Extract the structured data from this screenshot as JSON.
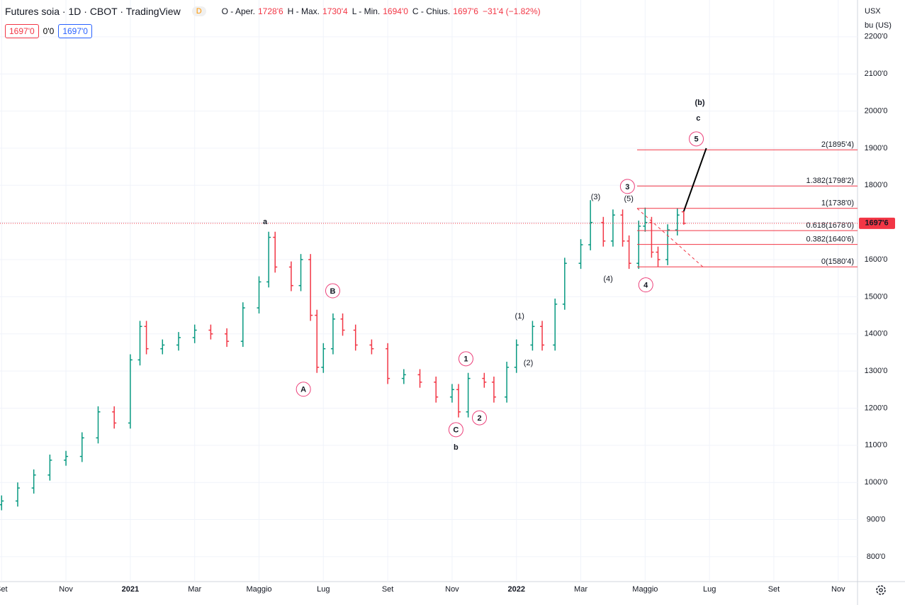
{
  "header": {
    "title": "Futures soia · 1D · CBOT · TradingView",
    "badge": "D",
    "ohlc": [
      {
        "label": "O - Aper.",
        "value": "1728'6"
      },
      {
        "label": "H - Max.",
        "value": "1730'4"
      },
      {
        "label": "L - Min.",
        "value": "1694'0"
      },
      {
        "label": "C - Chius.",
        "value": "1697'6"
      }
    ],
    "change": "−31'4 (−1.82%)",
    "price_boxes": [
      "1697'0",
      "0'0",
      "1697'0"
    ],
    "currency": "USX",
    "unit": "bu (US)"
  },
  "chart_data": {
    "type": "ohlc",
    "up_color": "#089981",
    "down_color": "#f23645",
    "x": [
      0,
      0.5,
      1,
      1.5,
      2,
      2.5,
      3,
      3.5,
      4,
      4.3,
      4.5,
      5,
      5.5,
      6,
      6.5,
      7,
      7.5,
      8,
      8.3,
      8.5,
      9,
      9.3,
      9.6,
      9.8,
      10,
      10.3,
      10.6,
      11,
      11.5,
      12,
      12.5,
      13,
      13.5,
      14,
      14.2,
      14.5,
      15,
      15.3,
      15.7,
      16,
      16.5,
      16.8,
      17.2,
      17.5,
      18,
      18.3,
      18.7,
      19,
      19.3,
      19.5,
      19.8,
      20,
      20.2,
      20.4,
      20.7,
      21,
      21.2
    ],
    "open": [
      940,
      950,
      985,
      1020,
      1060,
      1070,
      1120,
      1190,
      1160,
      1330,
      1420,
      1360,
      1370,
      1390,
      1410,
      1400,
      1380,
      1470,
      1540,
      1660,
      1580,
      1530,
      1600,
      1450,
      1310,
      1360,
      1440,
      1410,
      1370,
      1360,
      1280,
      1290,
      1270,
      1230,
      1250,
      1190,
      1280,
      1270,
      1230,
      1310,
      1370,
      1420,
      1370,
      1480,
      1590,
      1640,
      1700,
      1650,
      1720,
      1650,
      1590,
      1690,
      1700,
      1620,
      1600,
      1680,
      1728.75
    ],
    "high": [
      965,
      1000,
      1035,
      1075,
      1085,
      1135,
      1205,
      1205,
      1345,
      1435,
      1435,
      1385,
      1405,
      1425,
      1425,
      1415,
      1485,
      1555,
      1675,
      1675,
      1595,
      1615,
      1615,
      1465,
      1375,
      1455,
      1455,
      1425,
      1385,
      1375,
      1305,
      1305,
      1285,
      1265,
      1265,
      1295,
      1295,
      1285,
      1325,
      1385,
      1435,
      1435,
      1495,
      1605,
      1655,
      1760,
      1715,
      1735,
      1735,
      1665,
      1705,
      1740,
      1715,
      1635,
      1695,
      1738,
      1730.5
    ],
    "low": [
      925,
      935,
      970,
      1005,
      1045,
      1055,
      1105,
      1145,
      1145,
      1315,
      1345,
      1345,
      1355,
      1375,
      1385,
      1365,
      1365,
      1455,
      1525,
      1565,
      1515,
      1515,
      1435,
      1295,
      1295,
      1345,
      1395,
      1355,
      1345,
      1265,
      1265,
      1255,
      1215,
      1215,
      1175,
      1175,
      1255,
      1215,
      1215,
      1295,
      1355,
      1355,
      1355,
      1465,
      1575,
      1625,
      1635,
      1635,
      1635,
      1575,
      1575,
      1675,
      1605,
      1580.5,
      1585,
      1665,
      1694
    ],
    "close": [
      950,
      985,
      1020,
      1060,
      1070,
      1120,
      1190,
      1160,
      1330,
      1420,
      1360,
      1370,
      1390,
      1410,
      1400,
      1380,
      1470,
      1540,
      1660,
      1580,
      1530,
      1600,
      1450,
      1310,
      1360,
      1440,
      1410,
      1370,
      1360,
      1280,
      1290,
      1270,
      1230,
      1250,
      1190,
      1280,
      1270,
      1230,
      1310,
      1370,
      1420,
      1370,
      1480,
      1590,
      1640,
      1700,
      1650,
      1720,
      1650,
      1590,
      1690,
      1700,
      1620,
      1600,
      1680,
      1720,
      1697.75
    ],
    "last_price_label": "1697'6",
    "xlim": [
      -0.05,
      26.6
    ],
    "ylim": [
      733,
      2299
    ],
    "xticks": [
      {
        "value": 0,
        "label": "Set"
      },
      {
        "value": 2,
        "label": "Nov"
      },
      {
        "value": 4,
        "label": "2021"
      },
      {
        "value": 6,
        "label": "Mar"
      },
      {
        "value": 8,
        "label": "Maggio"
      },
      {
        "value": 10,
        "label": "Lug"
      },
      {
        "value": 12,
        "label": "Set"
      },
      {
        "value": 14,
        "label": "Nov"
      },
      {
        "value": 16,
        "label": "2022"
      },
      {
        "value": 18,
        "label": "Mar"
      },
      {
        "value": 20,
        "label": "Maggio"
      },
      {
        "value": 22,
        "label": "Lug"
      },
      {
        "value": 24,
        "label": "Set"
      },
      {
        "value": 26,
        "label": "Nov"
      }
    ],
    "yticks": [
      {
        "value": 800,
        "label": "800'0"
      },
      {
        "value": 900,
        "label": "900'0"
      },
      {
        "value": 1000,
        "label": "1000'0"
      },
      {
        "value": 1100,
        "label": "1100'0"
      },
      {
        "value": 1200,
        "label": "1200'0"
      },
      {
        "value": 1300,
        "label": "1300'0"
      },
      {
        "value": 1400,
        "label": "1400'0"
      },
      {
        "value": 1500,
        "label": "1500'0"
      },
      {
        "value": 1600,
        "label": "1600'0"
      },
      {
        "value": 1700,
        "label": "1700'0"
      },
      {
        "value": 1800,
        "label": "1800'0"
      },
      {
        "value": 1900,
        "label": "1900'0"
      },
      {
        "value": 2000,
        "label": "2000'0"
      },
      {
        "value": 2100,
        "label": "2100'0"
      },
      {
        "value": 2200,
        "label": "2200'0"
      }
    ],
    "grid": true,
    "fib_start_x": 19.75,
    "fib_color": "#f23645",
    "fib_levels": [
      {
        "value": 1895.5,
        "label": "2(1895'4)"
      },
      {
        "value": 1798.25,
        "label": "1.382(1798'2)"
      },
      {
        "value": 1738,
        "label": "1(1738'0)"
      },
      {
        "value": 1678,
        "label": "0.618(1678'0)"
      },
      {
        "value": 1640.75,
        "label": "0.382(1640'6)"
      },
      {
        "value": 1580.5,
        "label": "0(1580'4)"
      }
    ],
    "trendlines": [
      {
        "x": [
          21.2,
          21.9
        ],
        "y": [
          1730,
          1900
        ],
        "color": "#000000",
        "dash": false
      },
      {
        "x": [
          19.75,
          21.8
        ],
        "y": [
          1738,
          1580
        ],
        "color": "#f23645",
        "dash": true
      }
    ],
    "annotations": [
      {
        "text": "a",
        "x": 8.19,
        "y": 1703,
        "color": "#00695c",
        "style": "plain"
      },
      {
        "text": "b",
        "x": 14.12,
        "y": 1096,
        "color": "#00695c",
        "style": "plain"
      },
      {
        "text": "c",
        "x": 21.65,
        "y": 1982,
        "color": "#00695c",
        "style": "plain"
      },
      {
        "text": "(b)",
        "x": 21.7,
        "y": 2024,
        "color": "#e53935",
        "style": "bold"
      },
      {
        "text": "A",
        "x": 9.38,
        "y": 1251,
        "color": "#ec407a",
        "style": "circle"
      },
      {
        "text": "B",
        "x": 10.29,
        "y": 1516,
        "color": "#ec407a",
        "style": "circle"
      },
      {
        "text": "C",
        "x": 14.12,
        "y": 1142,
        "color": "#ec407a",
        "style": "circle"
      },
      {
        "text": "1",
        "x": 14.43,
        "y": 1333,
        "color": "#ec407a",
        "style": "circle"
      },
      {
        "text": "2",
        "x": 14.85,
        "y": 1174,
        "color": "#ec407a",
        "style": "circle"
      },
      {
        "text": "3",
        "x": 19.45,
        "y": 1797,
        "color": "#ec407a",
        "style": "circle"
      },
      {
        "text": "4",
        "x": 20.02,
        "y": 1532,
        "color": "#ec407a",
        "style": "circle"
      },
      {
        "text": "5",
        "x": 21.59,
        "y": 1925,
        "color": "#ec407a",
        "style": "circle"
      },
      {
        "text": "(1)",
        "x": 16.1,
        "y": 1449,
        "color": "#1e3fd6",
        "style": "plain"
      },
      {
        "text": "(2)",
        "x": 16.37,
        "y": 1323,
        "color": "#1e3fd6",
        "style": "plain"
      },
      {
        "text": "(3)",
        "x": 18.46,
        "y": 1770,
        "color": "#1e3fd6",
        "style": "plain"
      },
      {
        "text": "(4)",
        "x": 18.85,
        "y": 1549,
        "color": "#1e3fd6",
        "style": "plain"
      },
      {
        "text": "(5)",
        "x": 19.49,
        "y": 1765,
        "color": "#1e3fd6",
        "style": "plain"
      }
    ]
  }
}
